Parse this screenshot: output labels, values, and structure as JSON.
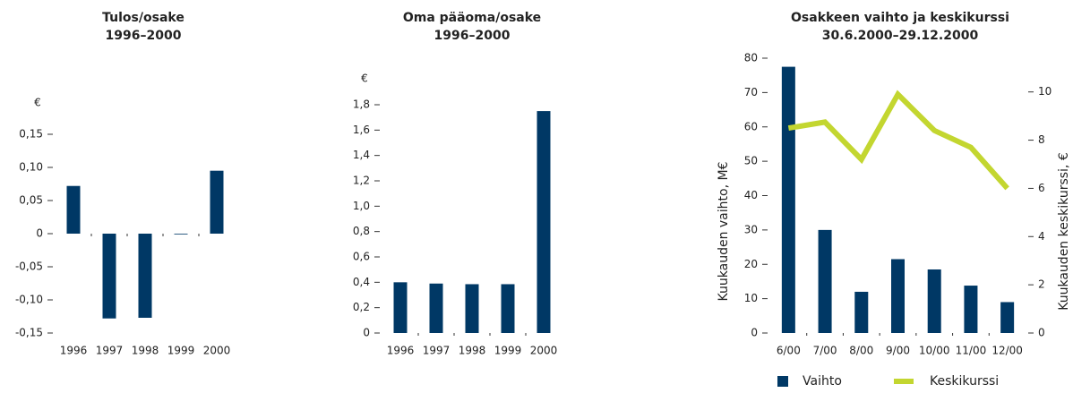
{
  "chart_data": [
    {
      "type": "bar",
      "title": "Tulos/osake",
      "subtitle": "1996–2000",
      "ylabel": "€",
      "categories": [
        "1996",
        "1997",
        "1998",
        "1999",
        "2000"
      ],
      "values": [
        0.072,
        -0.128,
        -0.127,
        -0.001,
        0.095
      ],
      "color": "#003865",
      "ylim": [
        -0.15,
        0.15
      ],
      "yticks": [
        {
          "value": -0.15,
          "label": "-0,15"
        },
        {
          "value": -0.1,
          "label": "-0,10"
        },
        {
          "value": -0.05,
          "label": "-0,05"
        },
        0,
        {
          "value": 0.05,
          "label": "0,05"
        },
        {
          "value": 0.1,
          "label": "0,10"
        },
        {
          "value": 0.15,
          "label": "0,15"
        }
      ]
    },
    {
      "type": "bar",
      "title": "Oma pääoma/osake",
      "subtitle": "1996–2000",
      "ylabel": "€",
      "categories": [
        "1996",
        "1997",
        "1998",
        "1999",
        "2000"
      ],
      "values": [
        0.4,
        0.39,
        0.385,
        0.385,
        1.75
      ],
      "color": "#003865",
      "ylim": [
        0,
        1.8
      ],
      "yticks": [
        0,
        {
          "value": 0.2,
          "label": "0,2"
        },
        {
          "value": 0.4,
          "label": "0,4"
        },
        {
          "value": 0.6,
          "label": "0,6"
        },
        {
          "value": 0.8,
          "label": "0,8"
        },
        {
          "value": 1.0,
          "label": "1,0"
        },
        {
          "value": 1.2,
          "label": "1,2"
        },
        {
          "value": 1.4,
          "label": "1,4"
        },
        {
          "value": 1.6,
          "label": "1,6"
        },
        {
          "value": 1.8,
          "label": "1,8"
        }
      ]
    },
    {
      "type": "combo",
      "title": "Osakkeen vaihto ja keskikurssi",
      "subtitle": "30.6.2000–29.12.2000",
      "ylabel": "Kuukauden vaihto, M€",
      "y2label": "Kuukauden keskikurssi, €",
      "categories": [
        "6/00",
        "7/00",
        "8/00",
        "9/00",
        "10/00",
        "11/00",
        "12/00"
      ],
      "series": [
        {
          "name": "Vaihto",
          "type": "bar",
          "axis": "y",
          "color": "#003865",
          "values": [
            77.5,
            30,
            12,
            21.5,
            18.5,
            13.8,
            9
          ]
        },
        {
          "name": "Keskikurssi",
          "type": "line",
          "axis": "y2",
          "color": "#c3d630",
          "values": [
            8.5,
            8.75,
            7.2,
            9.9,
            8.4,
            7.7,
            6.0
          ]
        }
      ],
      "ylim": [
        0,
        80
      ],
      "yticks": [
        0,
        10,
        20,
        30,
        40,
        50,
        60,
        70,
        80
      ],
      "y2lim": [
        0,
        11.4
      ],
      "y2ticks": [
        0,
        2,
        4,
        6,
        8,
        10
      ],
      "legend": "bottom"
    }
  ]
}
